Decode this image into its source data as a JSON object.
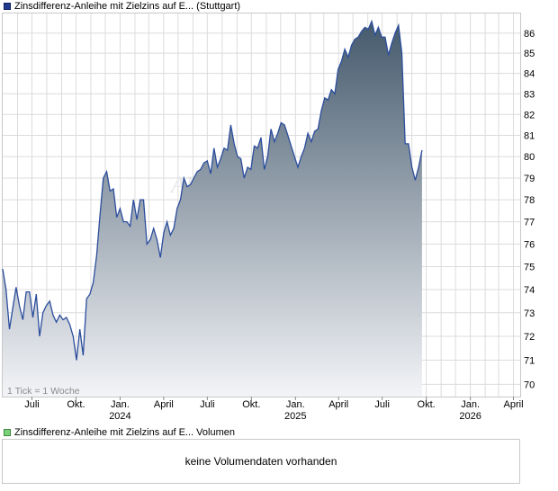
{
  "legend": {
    "price_label": "Zinsdifferenz-Anleihe mit Zielzins auf E... (Stuttgart)",
    "volume_label": "Zinsdifferenz-Anleihe mit Zielzins auf E... Volumen"
  },
  "watermark": "AKTIEN",
  "tick_note": "1 Tick = 1 Woche",
  "volume_message": "keine Volumendaten vorhanden",
  "colors": {
    "line": "#2b4d9c",
    "fill_top": "#455a6d",
    "fill_bottom": "#f3f4f7",
    "grid": "#dcdcdc"
  },
  "chart_data": {
    "type": "area",
    "y_scale": "log",
    "ylim": [
      69.5,
      87
    ],
    "ytick_labels": [
      "70",
      "71",
      "72",
      "73",
      "74",
      "75",
      "76",
      "77",
      "78",
      "79",
      "80",
      "81",
      "82",
      "83",
      "84",
      "85",
      "86"
    ],
    "x_tick_labels": [
      {
        "label": "Juli",
        "year": ""
      },
      {
        "label": "Okt.",
        "year": ""
      },
      {
        "label": "Jan.",
        "year": "2024"
      },
      {
        "label": "April",
        "year": ""
      },
      {
        "label": "Juli",
        "year": ""
      },
      {
        "label": "Okt.",
        "year": ""
      },
      {
        "label": "Jan.",
        "year": "2025"
      },
      {
        "label": "April",
        "year": ""
      },
      {
        "label": "Juli",
        "year": ""
      },
      {
        "label": "Okt.",
        "year": ""
      },
      {
        "label": "Jan.",
        "year": "2026"
      },
      {
        "label": "April",
        "year": ""
      }
    ],
    "x_range": [
      "2023-05-01",
      "2026-04-15"
    ],
    "grid": true,
    "series": [
      {
        "values": [
          [
            "2023-05-01",
            74.9
          ],
          [
            "2023-05-08",
            74.0
          ],
          [
            "2023-05-15",
            72.3
          ],
          [
            "2023-05-22",
            73.2
          ],
          [
            "2023-05-29",
            74.1
          ],
          [
            "2023-06-05",
            73.3
          ],
          [
            "2023-06-12",
            72.7
          ],
          [
            "2023-06-19",
            73.9
          ],
          [
            "2023-06-26",
            73.9
          ],
          [
            "2023-07-03",
            72.8
          ],
          [
            "2023-07-10",
            73.8
          ],
          [
            "2023-07-17",
            72.0
          ],
          [
            "2023-07-24",
            73.0
          ],
          [
            "2023-07-31",
            73.3
          ],
          [
            "2023-08-07",
            73.5
          ],
          [
            "2023-08-14",
            72.9
          ],
          [
            "2023-08-21",
            72.6
          ],
          [
            "2023-08-28",
            72.9
          ],
          [
            "2023-09-04",
            72.7
          ],
          [
            "2023-09-11",
            72.8
          ],
          [
            "2023-09-18",
            72.5
          ],
          [
            "2023-09-25",
            72.0
          ],
          [
            "2023-10-02",
            71.0
          ],
          [
            "2023-10-09",
            72.3
          ],
          [
            "2023-10-16",
            71.2
          ],
          [
            "2023-10-23",
            73.6
          ],
          [
            "2023-10-30",
            73.8
          ],
          [
            "2023-11-06",
            74.3
          ],
          [
            "2023-11-13",
            75.5
          ],
          [
            "2023-11-20",
            77.3
          ],
          [
            "2023-11-27",
            79.0
          ],
          [
            "2023-12-04",
            79.3
          ],
          [
            "2023-12-11",
            78.4
          ],
          [
            "2023-12-18",
            78.5
          ],
          [
            "2023-12-25",
            77.2
          ],
          [
            "2024-01-01",
            77.6
          ],
          [
            "2024-01-08",
            77.0
          ],
          [
            "2024-01-15",
            77.0
          ],
          [
            "2024-01-22",
            76.8
          ],
          [
            "2024-01-29",
            78.0
          ],
          [
            "2024-02-05",
            77.1
          ],
          [
            "2024-02-12",
            78.0
          ],
          [
            "2024-02-19",
            78.0
          ],
          [
            "2024-02-26",
            76.0
          ],
          [
            "2024-03-04",
            76.2
          ],
          [
            "2024-03-11",
            76.7
          ],
          [
            "2024-03-18",
            76.2
          ],
          [
            "2024-03-25",
            75.4
          ],
          [
            "2024-04-01",
            76.5
          ],
          [
            "2024-04-08",
            77.0
          ],
          [
            "2024-04-15",
            76.4
          ],
          [
            "2024-04-22",
            76.7
          ],
          [
            "2024-04-29",
            77.6
          ],
          [
            "2024-05-06",
            78.0
          ],
          [
            "2024-05-13",
            79.0
          ],
          [
            "2024-05-20",
            78.6
          ],
          [
            "2024-05-27",
            78.7
          ],
          [
            "2024-06-03",
            79.0
          ],
          [
            "2024-06-10",
            79.3
          ],
          [
            "2024-06-17",
            79.4
          ],
          [
            "2024-06-24",
            79.7
          ],
          [
            "2024-07-01",
            79.8
          ],
          [
            "2024-07-08",
            79.2
          ],
          [
            "2024-07-15",
            80.4
          ],
          [
            "2024-07-22",
            79.5
          ],
          [
            "2024-07-29",
            79.9
          ],
          [
            "2024-08-05",
            80.4
          ],
          [
            "2024-08-12",
            80.3
          ],
          [
            "2024-08-19",
            81.5
          ],
          [
            "2024-08-26",
            80.6
          ],
          [
            "2024-09-02",
            80.0
          ],
          [
            "2024-09-09",
            79.9
          ],
          [
            "2024-09-16",
            79.0
          ],
          [
            "2024-09-23",
            79.5
          ],
          [
            "2024-09-30",
            79.4
          ],
          [
            "2024-10-07",
            80.5
          ],
          [
            "2024-10-14",
            80.4
          ],
          [
            "2024-10-21",
            80.9
          ],
          [
            "2024-10-28",
            79.4
          ],
          [
            "2024-11-04",
            80.0
          ],
          [
            "2024-11-11",
            81.3
          ],
          [
            "2024-11-18",
            80.7
          ],
          [
            "2024-11-25",
            81.1
          ],
          [
            "2024-12-02",
            81.6
          ],
          [
            "2024-12-09",
            81.5
          ],
          [
            "2024-12-16",
            81.0
          ],
          [
            "2024-12-23",
            80.5
          ],
          [
            "2024-12-30",
            80.0
          ],
          [
            "2025-01-06",
            79.5
          ],
          [
            "2025-01-13",
            80.0
          ],
          [
            "2025-01-20",
            80.4
          ],
          [
            "2025-01-27",
            81.1
          ],
          [
            "2025-02-03",
            80.7
          ],
          [
            "2025-02-10",
            81.2
          ],
          [
            "2025-02-17",
            81.3
          ],
          [
            "2025-02-24",
            82.2
          ],
          [
            "2025-03-03",
            82.8
          ],
          [
            "2025-03-10",
            82.7
          ],
          [
            "2025-03-17",
            83.2
          ],
          [
            "2025-03-24",
            83.0
          ],
          [
            "2025-03-31",
            84.2
          ],
          [
            "2025-04-07",
            84.6
          ],
          [
            "2025-04-14",
            85.2
          ],
          [
            "2025-04-21",
            84.8
          ],
          [
            "2025-04-28",
            85.4
          ],
          [
            "2025-05-05",
            85.7
          ],
          [
            "2025-05-12",
            85.8
          ],
          [
            "2025-05-19",
            86.1
          ],
          [
            "2025-05-26",
            86.3
          ],
          [
            "2025-06-02",
            86.2
          ],
          [
            "2025-06-09",
            86.6
          ],
          [
            "2025-06-16",
            85.9
          ],
          [
            "2025-06-23",
            86.3
          ],
          [
            "2025-06-30",
            85.8
          ],
          [
            "2025-07-07",
            85.8
          ],
          [
            "2025-07-14",
            84.9
          ],
          [
            "2025-07-21",
            85.5
          ],
          [
            "2025-07-28",
            86.0
          ],
          [
            "2025-08-04",
            86.4
          ],
          [
            "2025-08-11",
            85.0
          ],
          [
            "2025-08-18",
            80.6
          ],
          [
            "2025-08-25",
            80.6
          ],
          [
            "2025-09-01",
            79.5
          ],
          [
            "2025-09-08",
            78.9
          ],
          [
            "2025-09-15",
            79.5
          ],
          [
            "2025-09-22",
            80.3
          ]
        ]
      }
    ]
  }
}
